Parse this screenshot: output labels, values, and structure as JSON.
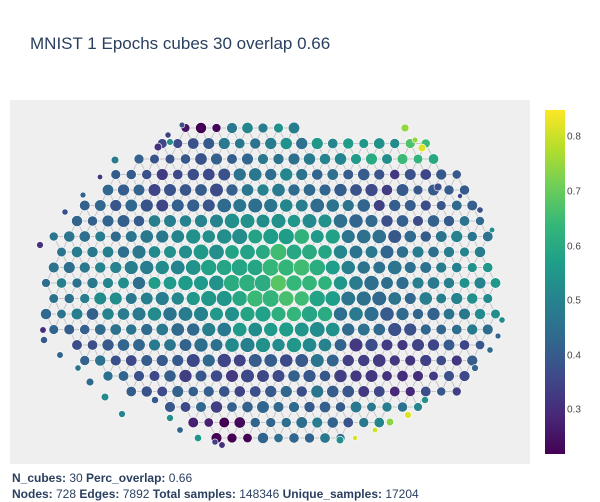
{
  "title": "MNIST 1 Epochs cubes 30 overlap 0.66",
  "footer": {
    "line1": [
      {
        "label": "N_cubes:",
        "value": "30"
      },
      {
        "label": "Perc_overlap:",
        "value": "0.66"
      }
    ],
    "line2": [
      {
        "label": "Nodes:",
        "value": "728"
      },
      {
        "label": "Edges:",
        "value": "7892"
      },
      {
        "label": "Total samples:",
        "value": "148346"
      },
      {
        "label": "Unique_samples:",
        "value": "17204"
      }
    ]
  },
  "chart_data": {
    "type": "scatter",
    "subtype": "network graph (mapper)",
    "title": "MNIST 1 Epochs cubes 30 overlap 0.66",
    "node_count": 728,
    "edge_count": 7892,
    "colorscale": "Viridis",
    "colorbar": {
      "range": [
        0.22,
        0.85
      ],
      "tick_values": [
        0.3,
        0.4,
        0.5,
        0.6,
        0.7,
        0.8
      ],
      "tick_labels": [
        "0.3",
        "0.4",
        "0.5",
        "0.6",
        "0.7",
        "0.8"
      ]
    },
    "edge_color": "#bbbbbb",
    "background": "#efefef",
    "grid": false,
    "axes_visible": false
  }
}
